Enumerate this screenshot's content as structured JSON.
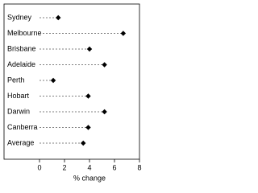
{
  "chart_data": {
    "type": "dot",
    "categories": [
      "Sydney",
      "Melbourne",
      "Brisbane",
      "Adelaide",
      "Perth",
      "Hobart",
      "Darwin",
      "Canberra",
      "Average"
    ],
    "values": [
      1.5,
      6.7,
      4.0,
      5.2,
      1.1,
      3.9,
      5.2,
      3.9,
      3.5
    ],
    "color": "#000000",
    "xlabel": "% change",
    "xlim": [
      0,
      8
    ],
    "xticks": [
      0,
      2,
      4,
      6,
      8
    ]
  }
}
